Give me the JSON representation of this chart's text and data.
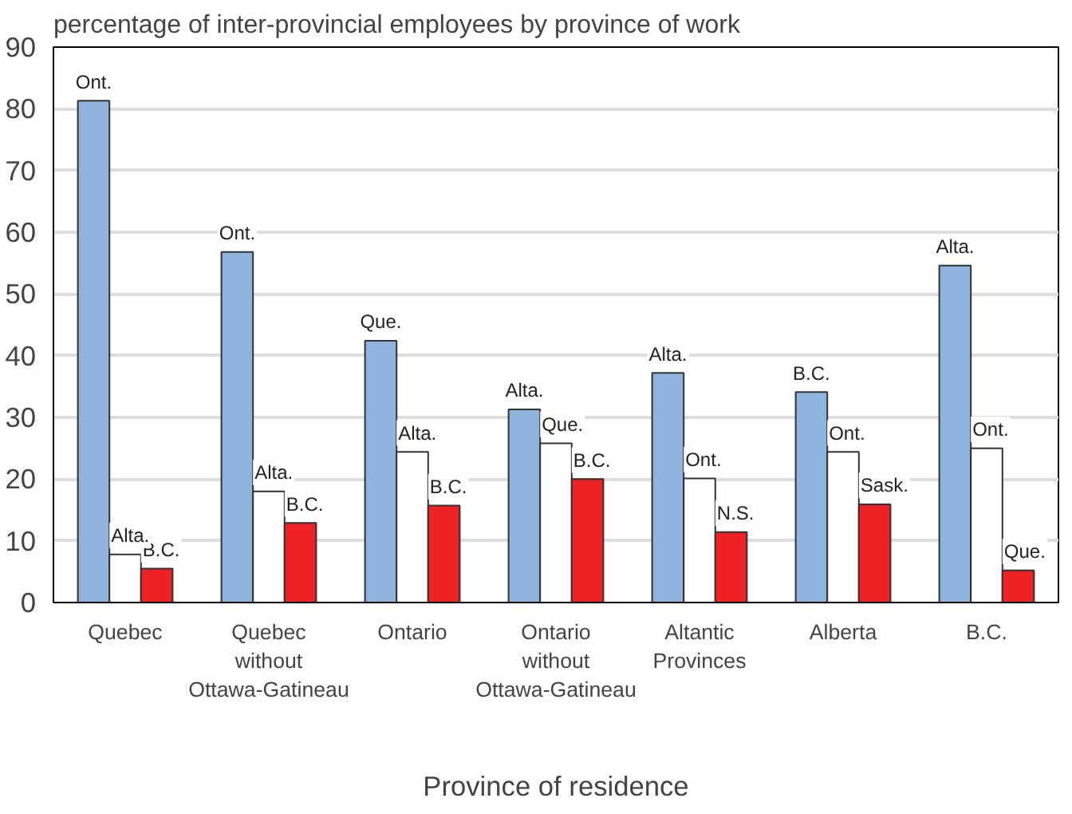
{
  "chart_data": {
    "type": "bar",
    "title": "percentage of inter-provincial employees by province of work",
    "xlabel": "Province of residence",
    "categories": [
      "Quebec",
      "Quebec\nwithout\nOttawa-Gatineau",
      "Ontario",
      "Ontario\nwithout\nOttawa-Gatineau",
      "Altantic\nProvinces",
      "Alberta",
      "B.C."
    ],
    "series": [
      {
        "color": "#8eb4de",
        "values": [
          81.3,
          56.8,
          42.4,
          31.3,
          37.2,
          34.1,
          54.6
        ],
        "value_labels": [
          "Ont.",
          "Ont.",
          "Que.",
          "Alta.",
          "Alta.",
          "B.C.",
          "Alta."
        ]
      },
      {
        "color": "#ffffff",
        "values": [
          7.8,
          18.0,
          24.4,
          25.8,
          20.1,
          24.4,
          25.0
        ],
        "value_labels": [
          "Alta.",
          "Alta.",
          "Alta.",
          "Que.",
          "Ont.",
          "Ont.",
          "Ont."
        ]
      },
      {
        "color": "#ee2224",
        "values": [
          5.5,
          12.9,
          15.7,
          20.0,
          11.4,
          15.9,
          5.2
        ],
        "value_labels": [
          "B.C.",
          "B.C.",
          "B.C.",
          "B.C.",
          "N.S.",
          "Sask.",
          "Que."
        ]
      }
    ],
    "ylim": [
      0,
      90
    ],
    "yticks": [
      0,
      10,
      20,
      30,
      40,
      50,
      60,
      70,
      80,
      90
    ],
    "grid": "y"
  }
}
